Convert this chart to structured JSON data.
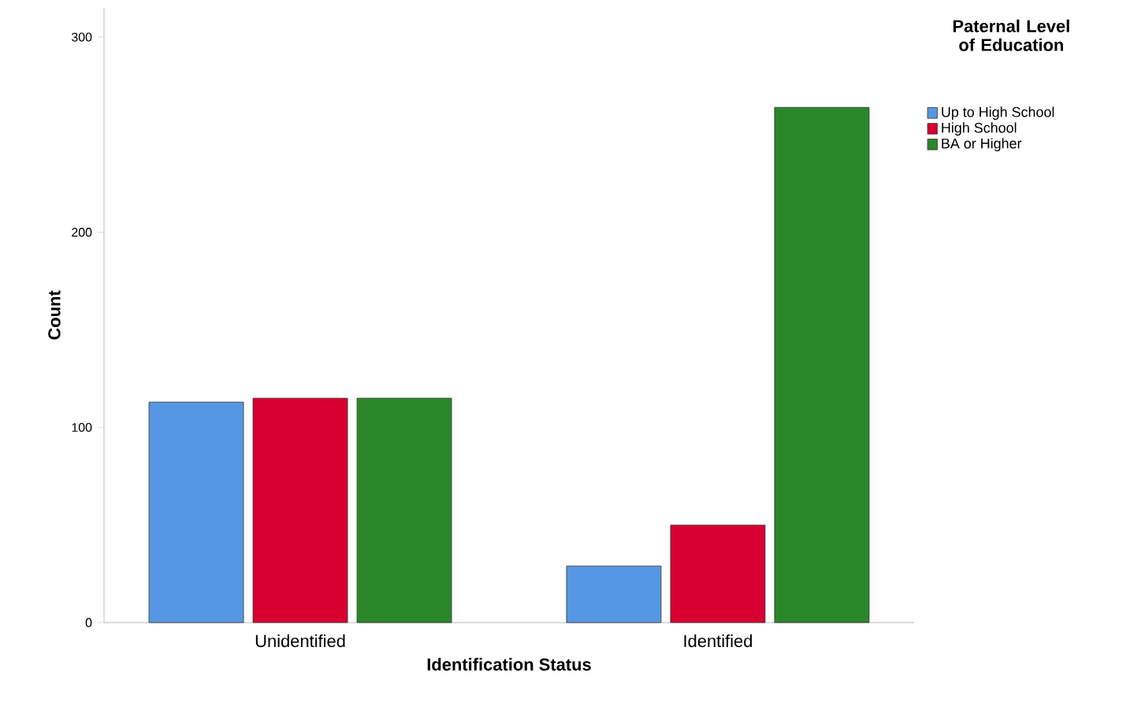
{
  "chart_data": {
    "type": "bar",
    "xlabel": "Identification Status",
    "ylabel": "Count",
    "legend_title": "Paternal Level of Education",
    "categories": [
      "Unidentified",
      "Identified"
    ],
    "series": [
      {
        "name": "Up to High School",
        "color": "#5697e3",
        "values": [
          113,
          29
        ]
      },
      {
        "name": "High School",
        "color": "#d70131",
        "values": [
          115,
          50
        ]
      },
      {
        "name": "BA or Higher",
        "color": "#298729",
        "values": [
          115,
          264
        ]
      }
    ],
    "ylim": [
      0,
      315
    ],
    "yticks": [
      0,
      100,
      200,
      300
    ],
    "grid": false,
    "legend": "top right"
  }
}
